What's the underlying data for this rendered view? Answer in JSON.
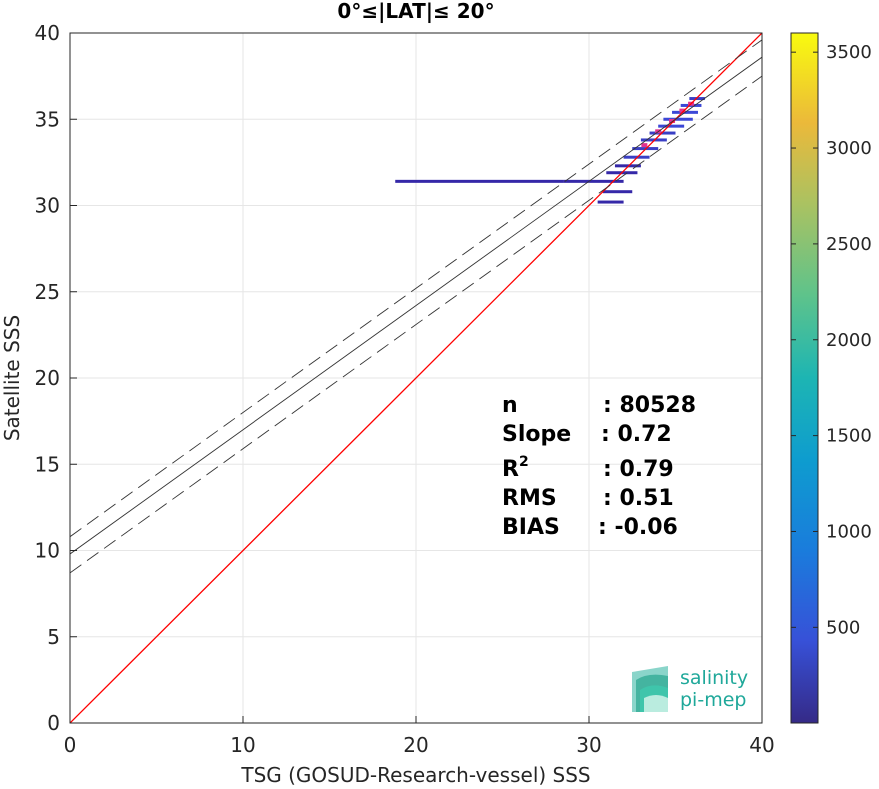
{
  "chart_data": {
    "type": "scatter",
    "title": "0°≤|LAT|≤ 20°",
    "xlabel": "TSG (GOSUD-Research-vessel) SSS",
    "ylabel": "Satellite SSS",
    "xlim": [
      0,
      40
    ],
    "ylim": [
      0,
      40
    ],
    "xticks": [
      "0",
      "10",
      "20",
      "30",
      "40"
    ],
    "yticks": [
      "0",
      "5",
      "10",
      "15",
      "20",
      "25",
      "30",
      "35",
      "40"
    ],
    "grid": true,
    "colorbar": {
      "range": [
        1,
        3600
      ],
      "ticks": [
        "500",
        "1000",
        "1500",
        "2000",
        "2500",
        "3000",
        "3500"
      ],
      "colormap": "parula"
    },
    "lines": [
      {
        "role": "one-to-one",
        "color": "#ff0000",
        "style": "solid",
        "x": [
          0,
          40
        ],
        "y": [
          0,
          40
        ]
      },
      {
        "role": "regression",
        "color": "#333333",
        "style": "solid",
        "x": [
          0,
          40
        ],
        "y": [
          9.8,
          38.6
        ]
      },
      {
        "role": "regression-upper",
        "color": "#333333",
        "style": "dashed",
        "x": [
          0,
          40
        ],
        "y": [
          10.8,
          39.6
        ]
      },
      {
        "role": "regression-lower",
        "color": "#333333",
        "style": "dashed",
        "x": [
          0,
          40
        ],
        "y": [
          8.7,
          37.5
        ]
      }
    ],
    "density_points": [
      {
        "x": 18.8,
        "x2": 28.5,
        "y": 31.4,
        "count": 40
      },
      {
        "x": 28.5,
        "x2": 32.0,
        "y": 31.4,
        "count": 120
      },
      {
        "x": 30.5,
        "x2": 32.0,
        "y": 30.2,
        "count": 80
      },
      {
        "x": 30.8,
        "x2": 32.5,
        "y": 30.8,
        "count": 100
      },
      {
        "x": 31.0,
        "x2": 32.8,
        "y": 31.9,
        "count": 150
      },
      {
        "x": 31.5,
        "x2": 33.0,
        "y": 32.3,
        "count": 180
      },
      {
        "x": 32.0,
        "x2": 33.5,
        "y": 32.8,
        "count": 220
      },
      {
        "x": 32.5,
        "x2": 34.0,
        "y": 33.3,
        "count": 300
      },
      {
        "x": 33.0,
        "x2": 34.5,
        "y": 33.8,
        "count": 380
      },
      {
        "x": 33.5,
        "x2": 35.0,
        "y": 34.2,
        "count": 420
      },
      {
        "x": 34.0,
        "x2": 35.5,
        "y": 34.6,
        "count": 480
      },
      {
        "x": 34.3,
        "x2": 36.0,
        "y": 35.0,
        "count": 500
      },
      {
        "x": 34.8,
        "x2": 36.3,
        "y": 35.4,
        "count": 520
      },
      {
        "x": 35.3,
        "x2": 36.5,
        "y": 35.8,
        "count": 460
      },
      {
        "x": 35.8,
        "x2": 36.7,
        "y": 36.2,
        "count": 300
      }
    ],
    "density_highlights": [
      {
        "x": 33.2,
        "y": 33.5,
        "color": "#e0338f"
      },
      {
        "x": 34.0,
        "y": 34.3,
        "color": "#e0338f"
      },
      {
        "x": 34.8,
        "y": 34.9,
        "color": "#e0338f"
      },
      {
        "x": 35.4,
        "y": 35.5,
        "color": "#e0338f"
      },
      {
        "x": 35.9,
        "y": 35.9,
        "color": "#e0338f"
      }
    ]
  },
  "stats": {
    "n_label": "n",
    "n_value": ": 80528",
    "slope_label": "Slope",
    "slope_value": ": 0.72",
    "r2_label": "R",
    "r2_sup": "2",
    "r2_value": ": 0.79",
    "rms_label": "RMS",
    "rms_value": ": 0.51",
    "bias_label": "BIAS",
    "bias_value": ": -0.06"
  },
  "logo": {
    "line1": "salinity",
    "line2": "pi-mep",
    "color": "#1fa89a"
  }
}
